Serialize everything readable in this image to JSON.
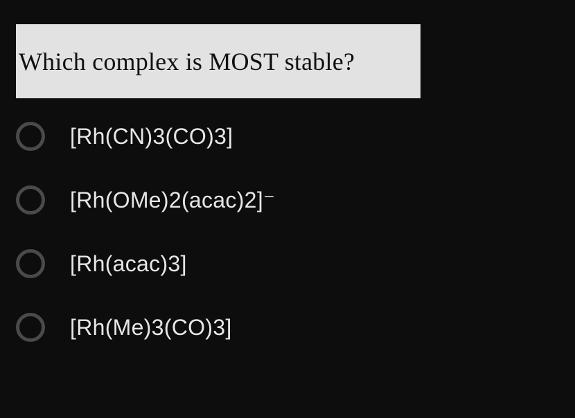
{
  "question": {
    "text": "Which complex is MOST stable?",
    "box_bg": "#e2e2e2",
    "text_color": "#111111",
    "font_family_serif": "Georgia, 'Times New Roman', serif",
    "font_size": 36
  },
  "options": [
    {
      "label": "[Rh(CN)3(CO)3]",
      "selected": false
    },
    {
      "label": "[Rh(OMe)2(acac)2]⁻",
      "selected": false
    },
    {
      "label": "[Rh(acac)3]",
      "selected": false
    },
    {
      "label": "[Rh(Me)3(CO)3]",
      "selected": false
    }
  ],
  "styling": {
    "page_bg": "#0d0d0d",
    "option_text_color": "#e6e6e6",
    "option_font_size": 32,
    "radio_border_color": "#4a4a4a",
    "radio_border_width": 5,
    "radio_diameter": 42
  }
}
